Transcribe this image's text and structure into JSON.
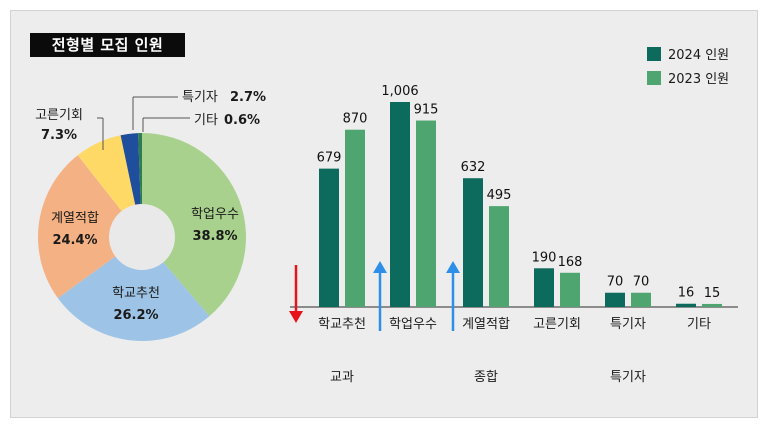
{
  "title": "전형별 모집 인원",
  "chart_data": [
    {
      "type": "pie",
      "style": "donut",
      "categories": [
        "학업우수",
        "학교추천",
        "계열적합",
        "고른기회",
        "특기자",
        "기타"
      ],
      "values": [
        38.8,
        26.2,
        24.4,
        7.3,
        2.7,
        0.6
      ],
      "labels": [
        "38.8%",
        "26.2%",
        "24.4%",
        "7.3%",
        "2.7%",
        "0.6%"
      ],
      "colors": [
        "#a9d18e",
        "#9dc3e6",
        "#f4b183",
        "#ffd966",
        "#1f4e9c",
        "#2e7d4f"
      ]
    },
    {
      "type": "bar",
      "categories": [
        "학교추천",
        "학업우수",
        "계열적합",
        "고른기회",
        "특기자",
        "기타"
      ],
      "groups": [
        {
          "label": "교과",
          "categories": [
            "학교추천"
          ]
        },
        {
          "label": "종합",
          "categories": [
            "학업우수",
            "계열적합",
            "고른기회"
          ]
        },
        {
          "label": "특기자",
          "categories": [
            "특기자",
            "기타"
          ]
        }
      ],
      "series": [
        {
          "name": "2024 인원",
          "values": [
            679,
            1006,
            632,
            190,
            70,
            16
          ],
          "labels": [
            "679",
            "1,006",
            "632",
            "190",
            "70",
            "16"
          ],
          "color": "#0d6b5e"
        },
        {
          "name": "2023 인원",
          "values": [
            870,
            915,
            495,
            168,
            70,
            15
          ],
          "labels": [
            "870",
            "915",
            "495",
            "168",
            "70",
            "15"
          ],
          "color": "#4fa56f"
        }
      ],
      "ylim": [
        0,
        1006
      ],
      "legend": "top-right",
      "arrows": [
        {
          "category": "학교추천",
          "direction": "down",
          "color": "#e8141c"
        },
        {
          "category": "학업우수",
          "direction": "up",
          "color": "#2e8fe8"
        },
        {
          "category": "계열적합",
          "direction": "up",
          "color": "#2e8fe8"
        }
      ]
    }
  ]
}
